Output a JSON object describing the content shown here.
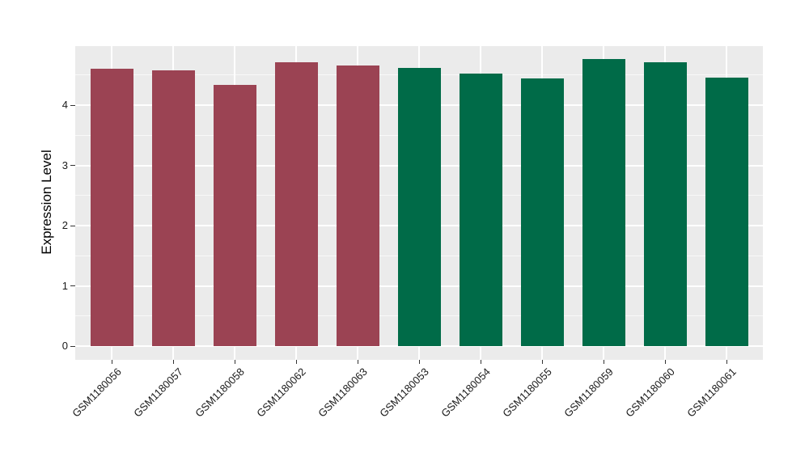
{
  "chart_data": {
    "type": "bar",
    "title": "",
    "xlabel": "",
    "ylabel": "Expression Level",
    "categories": [
      "GSM1180056",
      "GSM1180057",
      "GSM1180058",
      "GSM1180062",
      "GSM1180063",
      "GSM1180053",
      "GSM1180054",
      "GSM1180055",
      "GSM1180059",
      "GSM1180060",
      "GSM1180061"
    ],
    "values": [
      4.6,
      4.58,
      4.34,
      4.71,
      4.66,
      4.62,
      4.52,
      4.44,
      4.76,
      4.71,
      4.46
    ],
    "bar_colors": [
      "#9B4353",
      "#9B4353",
      "#9B4353",
      "#9B4353",
      "#9B4353",
      "#006B48",
      "#006B48",
      "#006B48",
      "#006B48",
      "#006B48",
      "#006B48"
    ],
    "group_colors": {
      "maroon": "#9B4353",
      "green": "#006B48"
    },
    "ytick_labels": [
      "0",
      "1",
      "2",
      "3",
      "4"
    ],
    "ytick_values": [
      0,
      1,
      2,
      3,
      4
    ],
    "grid_major_values": [
      0,
      1,
      2,
      3,
      4,
      5
    ],
    "grid_minor_values": [
      0.5,
      1.5,
      2.5,
      3.5,
      4.5
    ],
    "ylim": [
      -0.23,
      5.01
    ],
    "grid": "on",
    "legend": "none",
    "panel_bg": "#EBEBEB",
    "grid_major_color": "#FFFFFF",
    "grid_minor_color": "rgba(255,255,255,0.65)"
  }
}
